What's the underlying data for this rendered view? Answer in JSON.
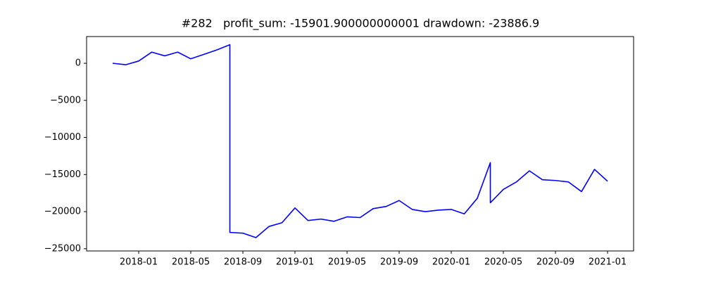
{
  "chart_data": {
    "type": "line",
    "title": "#282   profit_sum: -15901.900000000001 drawdown: -23886.9",
    "x": [
      "2017-11",
      "2017-12",
      "2018-01",
      "2018-02",
      "2018-03",
      "2018-04",
      "2018-05",
      "2018-06",
      "2018-07",
      "2018-08",
      "2018-08",
      "2018-09",
      "2018-10",
      "2018-11",
      "2018-12",
      "2019-01",
      "2019-02",
      "2019-03",
      "2019-04",
      "2019-05",
      "2019-06",
      "2019-07",
      "2019-08",
      "2019-09",
      "2019-10",
      "2019-11",
      "2019-12",
      "2020-01",
      "2020-02",
      "2020-03",
      "2020-04",
      "2020-04",
      "2020-05",
      "2020-06",
      "2020-07",
      "2020-08",
      "2020-09",
      "2020-10",
      "2020-11",
      "2020-12",
      "2021-01"
    ],
    "series": [
      {
        "color": "#0000ff",
        "values": [
          0,
          -200,
          300,
          1500,
          1000,
          1500,
          600,
          1200,
          1800,
          2500,
          -22800,
          -22900,
          -23500,
          -22000,
          -21500,
          -19500,
          -21200,
          -21000,
          -21300,
          -20700,
          -20800,
          -19600,
          -19300,
          -18500,
          -19700,
          -20000,
          -19800,
          -19700,
          -20300,
          -18200,
          -13400,
          -18800,
          -17000,
          -16000,
          -14500,
          -15700,
          -15800,
          -16000,
          -17300,
          -14300,
          -15900
        ]
      }
    ],
    "xlim": [
      "2017-09",
      "2021-03"
    ],
    "xticks": [
      "2018-01",
      "2018-05",
      "2018-09",
      "2019-01",
      "2019-05",
      "2019-09",
      "2020-01",
      "2020-05",
      "2020-09",
      "2021-01"
    ],
    "ylim": [
      -25300,
      3600
    ],
    "yticks": [
      {
        "value": 0,
        "label": "0"
      },
      {
        "value": -5000,
        "label": "−5000"
      },
      {
        "value": -10000,
        "label": "−10000"
      },
      {
        "value": -15000,
        "label": "−15000"
      },
      {
        "value": -20000,
        "label": "−20000"
      },
      {
        "value": -25000,
        "label": "−25000"
      }
    ],
    "grid": false
  }
}
